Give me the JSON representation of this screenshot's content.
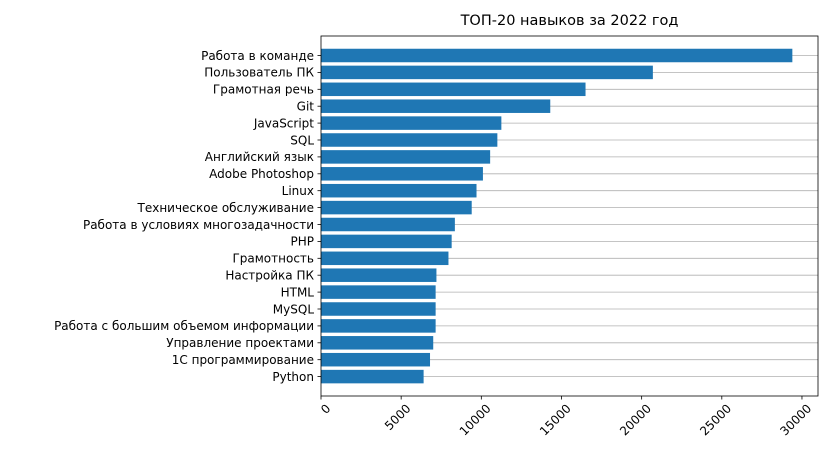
{
  "chart_data": {
    "type": "bar",
    "orientation": "horizontal",
    "title": "ТОП-20 навыков за 2022 год",
    "xlabel": "",
    "ylabel": "",
    "xlim": [
      0,
      31000
    ],
    "x_ticks": [
      0,
      5000,
      10000,
      15000,
      20000,
      25000,
      30000
    ],
    "x_tick_labels": [
      "0",
      "5000",
      "10000",
      "15000",
      "20000",
      "25000",
      "30000"
    ],
    "x_tick_rotation": 45,
    "grid": "y-axis only",
    "bar_color": "#1f77b4",
    "categories": [
      "Работа в команде",
      "Пользователь ПК",
      "Грамотная речь",
      "Git",
      "JavaScript",
      "SQL",
      "Английский язык",
      "Adobe Photoshop",
      "Linux",
      "Техническое обслуживание",
      "Работа в условиях многозадачности",
      "PHP",
      "Грамотность",
      "Настройка ПК",
      "HTML",
      "MySQL",
      "Работа с большим объемом информации",
      "Управление проектами",
      "1С программирование",
      "Python"
    ],
    "values": [
      29400,
      20700,
      16500,
      14300,
      11250,
      11000,
      10550,
      10100,
      9700,
      9400,
      8350,
      8150,
      7950,
      7200,
      7150,
      7150,
      7150,
      7000,
      6800,
      6400
    ]
  }
}
